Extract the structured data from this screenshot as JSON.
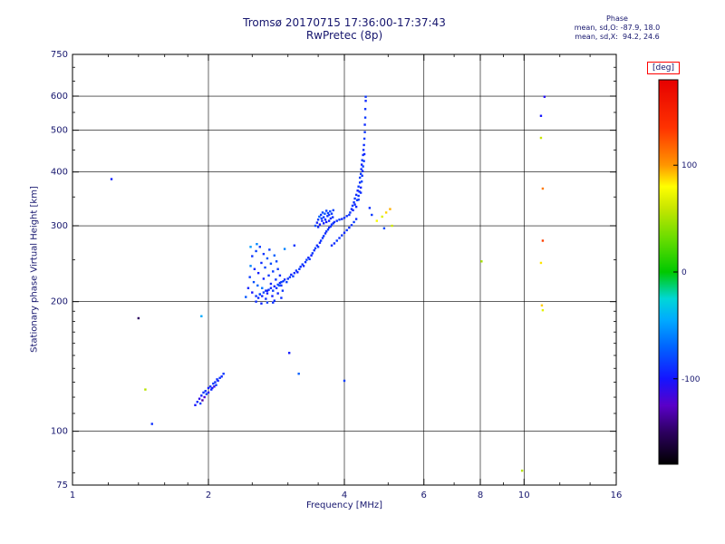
{
  "header": {
    "title": "Tromsø 20170715 17:36:00-17:37:43",
    "subtitle": "RwPretec (8p)",
    "stats_title": "Phase",
    "stats_line1": "mean, sd,O: -87.9, 18.0",
    "stats_line2": "mean, sd,X:  94.2, 24.6"
  },
  "colors": {
    "text": "#16166e",
    "axis": "#000000",
    "grid": "#000000",
    "background": "#ffffff",
    "deg_box_border": "#ff0000"
  },
  "chart_data": {
    "type": "scatter",
    "title": "Tromsø 20170715 17:36:00-17:37:43",
    "subtitle": "RwPretec (8p)",
    "xlabel": "Frequency [MHz]",
    "ylabel": "Stationary phase Virtual Height [km]",
    "x_scale": "log",
    "y_scale": "log",
    "xlim": [
      1,
      16
    ],
    "ylim": [
      75,
      750
    ],
    "x_ticks": [
      1,
      2,
      4,
      6,
      8,
      10,
      16
    ],
    "y_ticks": [
      75,
      100,
      200,
      300,
      400,
      500,
      600,
      750
    ],
    "x_gridlines": [
      2,
      4,
      6,
      8,
      10
    ],
    "y_gridlines": [
      100,
      200,
      300,
      400,
      500,
      600
    ],
    "x_minor_ticks": [
      1.2,
      1.4,
      1.6,
      1.8,
      2.5,
      3,
      3.5,
      5,
      7,
      9,
      12,
      14
    ],
    "y_minor_ticks": [
      80,
      90,
      110,
      120,
      130,
      140,
      150,
      160,
      170,
      180,
      190,
      250,
      350,
      450,
      550,
      650,
      700
    ],
    "grid": true,
    "colorbar": {
      "label": "[deg]",
      "min": -180,
      "max": 180,
      "ticks": [
        100,
        0,
        -100
      ],
      "stops": [
        [
          -180,
          "#000000"
        ],
        [
          -150,
          "#2d0060"
        ],
        [
          -125,
          "#5a00c8"
        ],
        [
          -100,
          "#1414ff"
        ],
        [
          -70,
          "#0064ff"
        ],
        [
          -45,
          "#00aaff"
        ],
        [
          -25,
          "#00d7d7"
        ],
        [
          0,
          "#00c800"
        ],
        [
          30,
          "#64dc00"
        ],
        [
          60,
          "#c8e600"
        ],
        [
          80,
          "#ffff00"
        ],
        [
          100,
          "#ff9600"
        ],
        [
          135,
          "#ff3200"
        ],
        [
          180,
          "#e60000"
        ]
      ]
    },
    "points_format": [
      "frequency_mhz",
      "virtual_height_km",
      "phase_deg"
    ],
    "points": [
      [
        2.55,
        206,
        -88
      ],
      [
        2.58,
        204,
        -92
      ],
      [
        2.6,
        208,
        -85
      ],
      [
        2.63,
        206,
        -95
      ],
      [
        2.65,
        210,
        -82
      ],
      [
        2.68,
        212,
        -90
      ],
      [
        2.7,
        209,
        -97
      ],
      [
        2.72,
        213,
        -86
      ],
      [
        2.75,
        215,
        -91
      ],
      [
        2.78,
        212,
        -84
      ],
      [
        2.8,
        217,
        -93
      ],
      [
        2.83,
        215,
        -88
      ],
      [
        2.85,
        219,
        -80
      ],
      [
        2.88,
        221,
        -95
      ],
      [
        2.9,
        218,
        -89
      ],
      [
        2.93,
        223,
        -86
      ],
      [
        2.95,
        225,
        -92
      ],
      [
        2.98,
        222,
        -84
      ],
      [
        3.0,
        226,
        -90
      ],
      [
        3.03,
        228,
        -87
      ],
      [
        3.05,
        231,
        -94
      ],
      [
        3.08,
        229,
        -83
      ],
      [
        3.1,
        233,
        -91
      ],
      [
        3.13,
        236,
        -88
      ],
      [
        3.15,
        234,
        -96
      ],
      [
        3.18,
        238,
        -85
      ],
      [
        3.2,
        241,
        -90
      ],
      [
        3.23,
        244,
        -87
      ],
      [
        3.25,
        242,
        -93
      ],
      [
        3.28,
        247,
        -89
      ],
      [
        3.3,
        250,
        -84
      ],
      [
        3.33,
        253,
        -92
      ],
      [
        3.35,
        251,
        -88
      ],
      [
        3.38,
        256,
        -95
      ],
      [
        3.4,
        259,
        -86
      ],
      [
        3.43,
        263,
        -90
      ],
      [
        3.45,
        266,
        -83
      ],
      [
        3.48,
        270,
        -91
      ],
      [
        3.5,
        268,
        -88
      ],
      [
        3.53,
        274,
        -94
      ],
      [
        3.55,
        277,
        -87
      ],
      [
        3.58,
        281,
        -90
      ],
      [
        3.6,
        284,
        -85
      ],
      [
        3.63,
        288,
        -92
      ],
      [
        3.65,
        291,
        -89
      ],
      [
        3.68,
        294,
        -86
      ],
      [
        3.7,
        297,
        -93
      ],
      [
        3.73,
        299,
        -88
      ],
      [
        3.75,
        302,
        -90
      ],
      [
        3.78,
        304,
        -87
      ],
      [
        3.8,
        306,
        -91
      ],
      [
        3.85,
        308,
        -89
      ],
      [
        3.9,
        310,
        -86
      ],
      [
        3.95,
        311,
        -92
      ],
      [
        4.0,
        313,
        -88
      ],
      [
        4.05,
        316,
        -90
      ],
      [
        4.1,
        318,
        -87
      ],
      [
        3.75,
        270,
        -89
      ],
      [
        3.8,
        273,
        -92
      ],
      [
        3.85,
        277,
        -86
      ],
      [
        3.9,
        281,
        -90
      ],
      [
        3.95,
        285,
        -88
      ],
      [
        4.0,
        289,
        -93
      ],
      [
        4.05,
        293,
        -87
      ],
      [
        4.1,
        297,
        -91
      ],
      [
        4.15,
        301,
        -89
      ],
      [
        4.2,
        306,
        -85
      ],
      [
        4.25,
        311,
        -90
      ],
      [
        3.45,
        300,
        -78
      ],
      [
        3.48,
        305,
        -95
      ],
      [
        3.5,
        310,
        -85
      ],
      [
        3.52,
        315,
        -70
      ],
      [
        3.53,
        302,
        -100
      ],
      [
        3.55,
        318,
        -88
      ],
      [
        3.57,
        308,
        -92
      ],
      [
        3.58,
        322,
        -80
      ],
      [
        3.6,
        304,
        -96
      ],
      [
        3.6,
        314,
        -86
      ],
      [
        3.62,
        320,
        -75
      ],
      [
        3.63,
        310,
        -90
      ],
      [
        3.65,
        325,
        -84
      ],
      [
        3.65,
        306,
        -99
      ],
      [
        3.67,
        316,
        -88
      ],
      [
        3.68,
        321,
        -82
      ],
      [
        3.7,
        308,
        -94
      ],
      [
        3.7,
        318,
        -87
      ],
      [
        3.72,
        324,
        -79
      ],
      [
        3.73,
        312,
        -91
      ],
      [
        3.75,
        320,
        -85
      ],
      [
        3.77,
        314,
        -89
      ],
      [
        3.78,
        326,
        -83
      ],
      [
        3.5,
        298,
        -93
      ],
      [
        3.56,
        312,
        -81
      ],
      [
        4.12,
        322,
        -88
      ],
      [
        4.15,
        328,
        -91
      ],
      [
        4.17,
        334,
        -85
      ],
      [
        4.18,
        326,
        -94
      ],
      [
        4.2,
        340,
        -89
      ],
      [
        4.22,
        347,
        -86
      ],
      [
        4.22,
        336,
        -92
      ],
      [
        4.25,
        354,
        -90
      ],
      [
        4.27,
        344,
        -83
      ],
      [
        4.28,
        362,
        -95
      ],
      [
        4.3,
        352,
        -88
      ],
      [
        4.3,
        370,
        -86
      ],
      [
        4.32,
        360,
        -91
      ],
      [
        4.33,
        378,
        -89
      ],
      [
        4.33,
        388,
        -84
      ],
      [
        4.35,
        368,
        -93
      ],
      [
        4.35,
        396,
        -87
      ],
      [
        4.36,
        406,
        -90
      ],
      [
        4.37,
        380,
        -82
      ],
      [
        4.37,
        416,
        -95
      ],
      [
        4.38,
        392,
        -88
      ],
      [
        4.38,
        426,
        -86
      ],
      [
        4.39,
        402,
        -91
      ],
      [
        4.4,
        438,
        -89
      ],
      [
        4.4,
        412,
        -84
      ],
      [
        4.41,
        450,
        -92
      ],
      [
        4.42,
        424,
        -87
      ],
      [
        4.42,
        462,
        -90
      ],
      [
        4.43,
        478,
        -85
      ],
      [
        4.43,
        440,
        -94
      ],
      [
        4.44,
        495,
        -88
      ],
      [
        4.44,
        515,
        -91
      ],
      [
        4.45,
        535,
        -86
      ],
      [
        4.45,
        560,
        -89
      ],
      [
        4.46,
        585,
        -92
      ],
      [
        4.46,
        598,
        -87
      ],
      [
        4.35,
        358,
        -90
      ],
      [
        4.3,
        345,
        -85
      ],
      [
        4.25,
        332,
        -92
      ],
      [
        2.42,
        205,
        -75
      ],
      [
        2.45,
        215,
        -95
      ],
      [
        2.47,
        228,
        -85
      ],
      [
        2.48,
        242,
        -60
      ],
      [
        2.5,
        210,
        -100
      ],
      [
        2.5,
        255,
        -88
      ],
      [
        2.52,
        222,
        -78
      ],
      [
        2.53,
        238,
        -92
      ],
      [
        2.55,
        262,
        -83
      ],
      [
        2.55,
        200,
        -90
      ],
      [
        2.57,
        218,
        -70
      ],
      [
        2.58,
        233,
        -97
      ],
      [
        2.6,
        268,
        -86
      ],
      [
        2.6,
        208,
        -80
      ],
      [
        2.62,
        246,
        -91
      ],
      [
        2.63,
        215,
        -65
      ],
      [
        2.65,
        258,
        -88
      ],
      [
        2.65,
        226,
        -94
      ],
      [
        2.67,
        240,
        -82
      ],
      [
        2.68,
        203,
        -89
      ],
      [
        2.7,
        252,
        -76
      ],
      [
        2.7,
        212,
        -99
      ],
      [
        2.72,
        230,
        -87
      ],
      [
        2.73,
        264,
        -84
      ],
      [
        2.75,
        220,
        -92
      ],
      [
        2.75,
        245,
        -79
      ],
      [
        2.77,
        206,
        -96
      ],
      [
        2.78,
        235,
        -85
      ],
      [
        2.8,
        256,
        -72
      ],
      [
        2.8,
        201,
        -90
      ],
      [
        2.82,
        225,
        -88
      ],
      [
        2.83,
        248,
        -81
      ],
      [
        2.85,
        209,
        -94
      ],
      [
        2.85,
        238,
        -86
      ],
      [
        2.87,
        218,
        -77
      ],
      [
        2.88,
        230,
        -91
      ],
      [
        2.9,
        204,
        -89
      ],
      [
        2.9,
        222,
        -83
      ],
      [
        2.92,
        212,
        -87
      ],
      [
        2.48,
        268,
        -50
      ],
      [
        2.56,
        272,
        -58
      ],
      [
        2.62,
        198,
        -93
      ],
      [
        2.7,
        199,
        -85
      ],
      [
        2.78,
        199,
        -90
      ],
      [
        1.87,
        115,
        -100
      ],
      [
        1.89,
        117,
        -92
      ],
      [
        1.91,
        119,
        -110
      ],
      [
        1.92,
        116,
        -85
      ],
      [
        1.93,
        121,
        -95
      ],
      [
        1.95,
        123,
        -88
      ],
      [
        1.96,
        120,
        -120
      ],
      [
        1.97,
        124,
        -90
      ],
      [
        1.98,
        122,
        -82
      ],
      [
        2.0,
        126,
        -97
      ],
      [
        2.0,
        123,
        -105
      ],
      [
        2.02,
        127,
        -89
      ],
      [
        2.03,
        125,
        -93
      ],
      [
        2.05,
        129,
        -86
      ],
      [
        2.06,
        127,
        -115
      ],
      [
        2.07,
        130,
        -91
      ],
      [
        2.08,
        128,
        -84
      ],
      [
        2.1,
        131,
        -96
      ],
      [
        2.12,
        133,
        -88
      ],
      [
        2.14,
        134,
        -92
      ],
      [
        2.16,
        136,
        -87
      ],
      [
        1.94,
        118,
        -135
      ],
      [
        2.04,
        126,
        -99
      ],
      [
        2.09,
        132,
        -90
      ],
      [
        1.22,
        385,
        -95
      ],
      [
        1.4,
        183,
        -150
      ],
      [
        1.45,
        125,
        55
      ],
      [
        1.5,
        104,
        -90
      ],
      [
        1.93,
        185,
        -45
      ],
      [
        3.02,
        152,
        -98
      ],
      [
        3.17,
        136,
        -72
      ],
      [
        4.0,
        131,
        -85
      ],
      [
        2.95,
        265,
        -60
      ],
      [
        3.1,
        270,
        -88
      ],
      [
        4.72,
        308,
        78
      ],
      [
        4.85,
        315,
        68
      ],
      [
        4.95,
        322,
        88
      ],
      [
        5.05,
        328,
        95
      ],
      [
        5.1,
        300,
        62
      ],
      [
        4.9,
        296,
        -80
      ],
      [
        4.6,
        318,
        -86
      ],
      [
        4.55,
        330,
        -90
      ],
      [
        8.05,
        248,
        50
      ],
      [
        9.9,
        81,
        55
      ],
      [
        10.9,
        540,
        -100
      ],
      [
        10.9,
        480,
        60
      ],
      [
        11.0,
        366,
        110
      ],
      [
        11.0,
        277,
        130
      ],
      [
        10.9,
        246,
        85
      ],
      [
        11.0,
        191,
        70
      ],
      [
        11.1,
        598,
        -105
      ],
      [
        10.95,
        196,
        90
      ]
    ]
  }
}
